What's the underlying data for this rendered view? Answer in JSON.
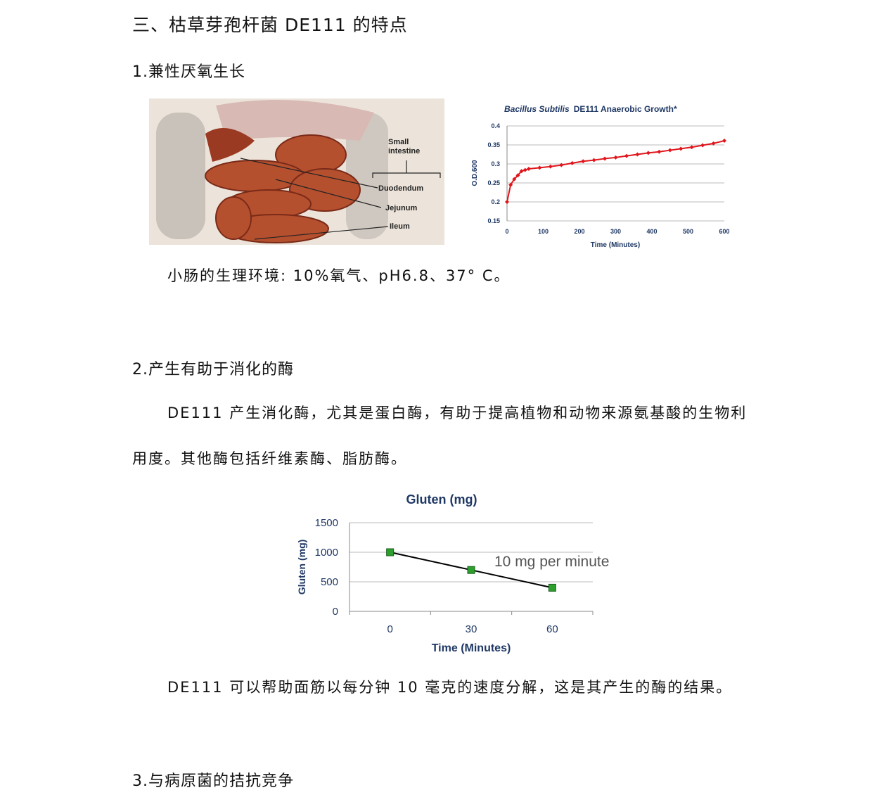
{
  "section_title": "三、枯草芽孢杆菌 DE111 的特点",
  "sections": [
    {
      "heading": "1.兼性厌氧生长",
      "caption": "小肠的生理环境: 10%氧气、pH6.8、37° C。"
    },
    {
      "heading": "2.产生有助于消化的酶",
      "paragraph_line1": "DE111 产生消化酶，尤其是蛋白酶，有助于提高植物和动物来源氨基酸的生物利",
      "paragraph_line2": "用度。其他酶包括纤维素酶、脂肪酶。",
      "caption": "DE111 可以帮助面筋以每分钟 10 毫克的速度分解，这是其产生的酶的结果。"
    },
    {
      "heading": "3.与病原菌的拮抗竞争"
    }
  ],
  "anatomy_image": {
    "labels": {
      "small_intestine_1": "Small",
      "small_intestine_2": "intestine",
      "duodenum": "Duodendum",
      "jejunum": "Jejunum",
      "ileum": "Ileum"
    }
  },
  "chart_data": [
    {
      "type": "line",
      "title_italic": "Bacillus Subtilis",
      "title_rest": "DE111 Anaerobic Growth*",
      "xlabel": "Time (Minutes)",
      "ylabel": "O.D.600",
      "xlim": [
        0,
        600
      ],
      "ylim": [
        0.15,
        0.4
      ],
      "xticks": [
        "0",
        "100",
        "200",
        "300",
        "400",
        "500",
        "600"
      ],
      "yticks": [
        "0.15",
        "0.2",
        "0.25",
        "0.3",
        "0.35",
        "0.4"
      ],
      "grid": true,
      "color": "#e0161c",
      "x": [
        0,
        10,
        20,
        30,
        40,
        50,
        60,
        90,
        120,
        150,
        180,
        210,
        240,
        270,
        300,
        330,
        360,
        390,
        420,
        450,
        480,
        510,
        540,
        570,
        600
      ],
      "y": [
        0.2,
        0.245,
        0.26,
        0.27,
        0.281,
        0.284,
        0.287,
        0.29,
        0.293,
        0.297,
        0.302,
        0.307,
        0.31,
        0.314,
        0.317,
        0.321,
        0.325,
        0.329,
        0.332,
        0.336,
        0.34,
        0.344,
        0.349,
        0.354,
        0.361
      ]
    },
    {
      "type": "line",
      "title": "Gluten (mg)",
      "xlabel": "Time (Minutes)",
      "ylabel": "Gluten (mg)",
      "categories": [
        "0",
        "30",
        "60"
      ],
      "values": [
        1000,
        700,
        400
      ],
      "ylim": [
        0,
        1500
      ],
      "yticks": [
        "0",
        "500",
        "1000",
        "1500"
      ],
      "grid": true,
      "annotation": "10 mg per minute",
      "marker_color": "#2ca02c",
      "line_color": "#000000"
    }
  ]
}
